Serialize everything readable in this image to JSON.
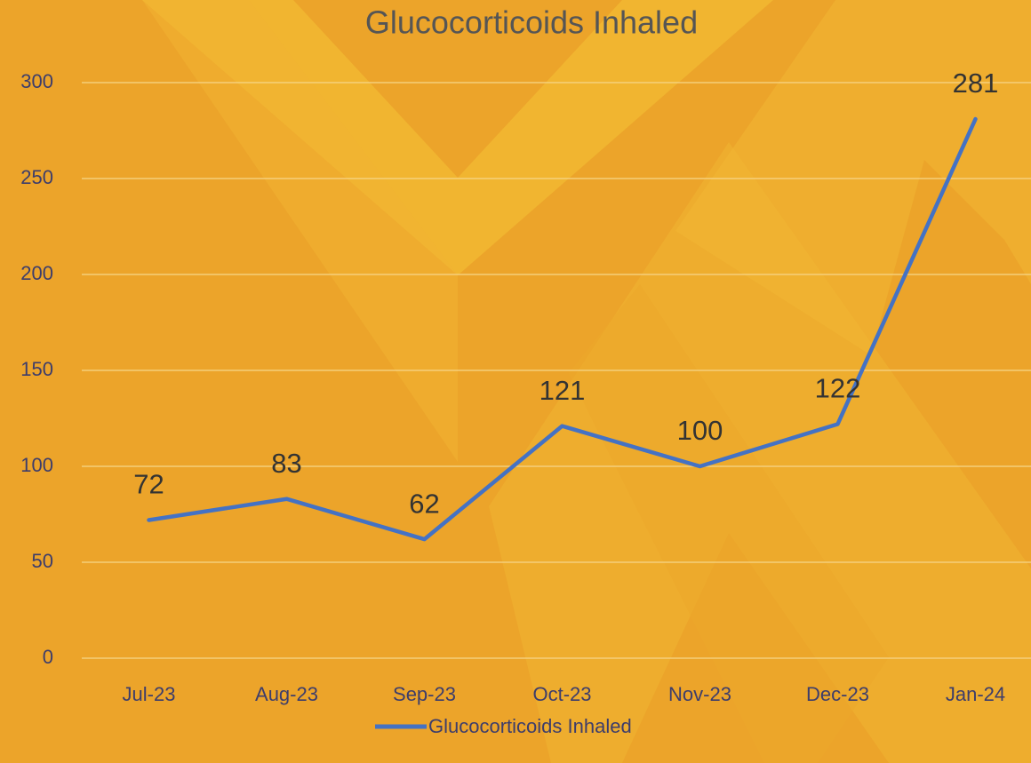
{
  "chart_data": {
    "type": "line",
    "title": "Glucocorticoids Inhaled",
    "categories": [
      "Jul-23",
      "Aug-23",
      "Sep-23",
      "Oct-23",
      "Nov-23",
      "Dec-23",
      "Jan-24"
    ],
    "series": [
      {
        "name": "Glucocorticoids Inhaled",
        "color": "#4472c4",
        "values": [
          72,
          83,
          62,
          121,
          100,
          122,
          281
        ]
      }
    ],
    "ylim": [
      0,
      300
    ],
    "yticks": [
      0,
      50,
      100,
      150,
      200,
      250,
      300
    ],
    "grid": true,
    "legend": "bottom"
  }
}
